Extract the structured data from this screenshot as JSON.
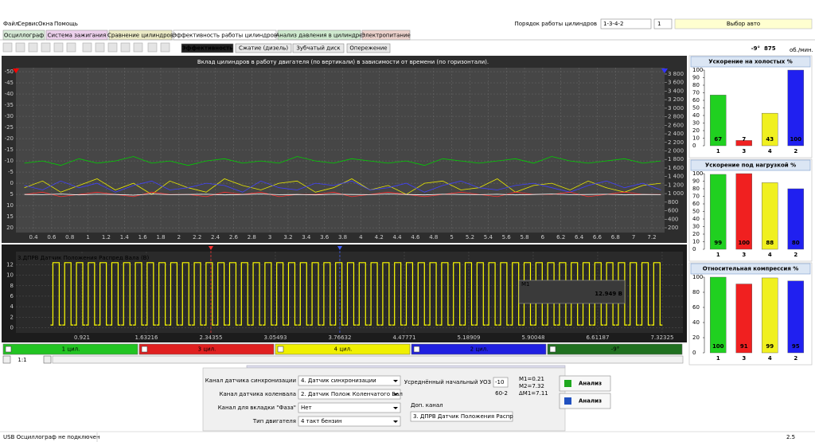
{
  "menu": [
    "Файл",
    "Сервис",
    "Окна",
    "Помощь"
  ],
  "tabs": [
    "Осциллограф",
    "Система зажигания",
    "Сравнение цилиндров",
    "Эффективность работы цилиндров",
    "Анализ давления в цилиндре",
    "Электропитание"
  ],
  "toolbar": {
    "firing_order_label": "Порядок работы цилиндров",
    "firing_order": "1-3-4-2",
    "cylinder": "1",
    "car_select": "Выбор авто"
  },
  "subtabs": [
    "Эффективность",
    "Сжатие (дизель)",
    "Зубчатый диск",
    "Опережение"
  ],
  "readout": {
    "advance": "-9°",
    "rpm": "875",
    "rpm_unit": "об./мин."
  },
  "chart_data": [
    {
      "type": "line",
      "title": "Вклад цилиндров в работу двигателя (по вертикали) в зависимости от времени (по горизонтали).",
      "x": [
        0.3,
        0.5,
        0.7,
        0.9,
        1.1,
        1.3,
        1.5,
        1.7,
        1.9,
        2.1,
        2.3,
        2.5,
        2.7,
        2.9,
        3.1,
        3.3,
        3.5,
        3.7,
        3.9,
        4.1,
        4.3,
        4.5,
        4.7,
        4.9,
        5.1,
        5.3,
        5.5,
        5.7,
        5.9,
        6.1,
        6.3,
        6.5,
        6.7,
        6.9,
        7.1,
        7.3
      ],
      "xlim": [
        0.207,
        7.34
      ],
      "xticks": [
        0.4,
        0.6,
        0.8,
        1,
        1.2,
        1.4,
        1.6,
        1.8,
        2,
        2.2,
        2.4,
        2.6,
        2.8,
        3,
        3.2,
        3.4,
        3.6,
        3.8,
        4,
        4.2,
        4.4,
        4.6,
        4.8,
        5,
        5.2,
        5.4,
        5.6,
        5.8,
        6,
        6.2,
        6.4,
        6.6,
        6.8,
        7,
        7.2
      ],
      "ylim": [
        -51.8,
        22.1
      ],
      "y_inverted": true,
      "yticks": [
        -50,
        -45,
        -40,
        -35,
        -30,
        -25,
        -20,
        -15,
        -10,
        -5,
        0,
        5,
        10,
        15,
        20
      ],
      "y2lim": [
        88,
        3949
      ],
      "y2ticks": [
        {
          "value": 200,
          "label": "200"
        },
        {
          "value": 400,
          "label": "400"
        },
        {
          "value": 600,
          "label": "600"
        },
        {
          "value": 800,
          "label": "800"
        },
        {
          "value": 1000,
          "label": "1 000"
        },
        {
          "value": 1200,
          "label": "1 200"
        },
        {
          "value": 1400,
          "label": "1 400"
        },
        {
          "value": 1600,
          "label": "1 600"
        },
        {
          "value": 1800,
          "label": "1 800"
        },
        {
          "value": 2000,
          "label": "2 000"
        },
        {
          "value": 2200,
          "label": "2 200"
        },
        {
          "value": 2400,
          "label": "2 400"
        },
        {
          "value": 2600,
          "label": "2 600"
        },
        {
          "value": 2800,
          "label": "2 800"
        },
        {
          "value": 3000,
          "label": "3 000"
        },
        {
          "value": 3200,
          "label": "3 200"
        },
        {
          "value": 3400,
          "label": "3 400"
        },
        {
          "value": 3600,
          "label": "3 600"
        },
        {
          "value": 3800,
          "label": "3 800"
        }
      ],
      "grid": true,
      "series": [
        {
          "color": "#00d000",
          "values": [
            -9,
            -10,
            -8,
            -11,
            -9,
            -10,
            -12,
            -9,
            -10,
            -8,
            -10,
            -11,
            -9,
            -10,
            -9,
            -12,
            -10,
            -9,
            -11,
            -10,
            -9,
            -10,
            -8,
            -11,
            -10,
            -9,
            -10,
            -11,
            -9,
            -12,
            -10,
            -9,
            -10,
            -11,
            -9,
            -10
          ]
        },
        {
          "color": "#e8e800",
          "values": [
            2,
            -1,
            4,
            1,
            -2,
            3,
            0,
            5,
            -1,
            2,
            4,
            -2,
            1,
            3,
            0,
            -1,
            4,
            2,
            -2,
            3,
            1,
            5,
            0,
            -1,
            3,
            2,
            -2,
            4,
            1,
            0,
            3,
            -1,
            2,
            4,
            1,
            0
          ]
        },
        {
          "color": "#4040ff",
          "values": [
            1,
            3,
            -1,
            2,
            0,
            4,
            1,
            -1,
            3,
            2,
            0,
            1,
            4,
            -1,
            2,
            3,
            0,
            1,
            -1,
            3,
            2,
            0,
            4,
            1,
            -1,
            2,
            3,
            1,
            0,
            2,
            4,
            1,
            -1,
            2,
            0,
            3
          ]
        },
        {
          "color": "#ff3030",
          "values": [
            5,
            4,
            6,
            5,
            4,
            5,
            6,
            4,
            5,
            5,
            6,
            4,
            5,
            4,
            6,
            5,
            5,
            4,
            6,
            5,
            4,
            5,
            6,
            5,
            4,
            5,
            6,
            4,
            5,
            5,
            4,
            6,
            5,
            4,
            5,
            5
          ]
        },
        {
          "color": "#ffffff",
          "axis": "y2",
          "values": [
            980,
            975,
            990,
            970,
            985,
            980,
            965,
            990,
            975,
            980,
            985,
            970,
            980,
            990,
            975,
            980,
            970,
            985,
            980,
            975,
            990,
            980,
            970,
            985,
            980,
            975,
            985,
            970,
            980,
            990,
            975,
            980,
            985,
            970,
            980,
            975
          ]
        }
      ]
    },
    {
      "type": "pulse",
      "title": "3.ДПРВ Датчик Положения Распред Вала (В)",
      "color": "#ffff00",
      "xlim": [
        0.192,
        7.552
      ],
      "xticks": [
        0.921,
        1.63216,
        2.34355,
        3.05493,
        3.76632,
        4.47771,
        5.18909,
        5.90048,
        6.61187,
        7.32325
      ],
      "ylim": [
        -1,
        14.5
      ],
      "yticks": [
        0,
        2,
        4,
        6,
        8,
        10,
        12
      ],
      "grid": true,
      "signal_low": 0.5,
      "signal_high": 12.4,
      "pulse_width": 0.07,
      "pulse_starts": [
        0.6,
        0.73,
        0.86,
        0.99,
        1.12,
        1.25,
        1.38,
        1.51,
        1.64,
        1.77,
        1.9,
        2.03,
        2.16,
        2.29,
        2.42,
        2.55,
        2.68,
        2.81,
        2.94,
        3.07,
        3.2,
        3.33,
        3.46,
        3.59,
        3.72,
        3.85,
        3.98,
        4.11,
        4.24,
        4.37,
        4.5,
        4.63,
        4.76,
        4.89,
        5.02,
        5.15,
        5.28,
        5.41,
        5.54,
        5.67,
        5.8,
        5.93,
        6.06,
        6.19,
        6.32,
        6.45,
        6.58,
        6.71,
        6.84,
        6.97,
        7.1,
        7.23
      ],
      "cursors": [
        2.34355,
        3.76632
      ],
      "marker_name": "M1",
      "marker_value": "12.949 В"
    },
    {
      "type": "bar",
      "title": "Ускорение на холостых %",
      "categories": [
        "1",
        "3",
        "4",
        "2"
      ],
      "values": [
        67,
        7,
        43,
        100
      ],
      "colors": [
        "#20d020",
        "#f02020",
        "#f0f020",
        "#2020f0"
      ],
      "ylim": [
        0,
        100
      ],
      "yticks": [
        0,
        10,
        20,
        30,
        40,
        50,
        60,
        70,
        80,
        90,
        100
      ]
    },
    {
      "type": "bar",
      "title": "Ускорение под нагрузкой %",
      "categories": [
        "1",
        "3",
        "4",
        "2"
      ],
      "values": [
        99,
        100,
        88,
        80
      ],
      "colors": [
        "#20d020",
        "#f02020",
        "#f0f020",
        "#2020f0"
      ],
      "ylim": [
        0,
        100
      ],
      "yticks": [
        0,
        10,
        20,
        30,
        40,
        50,
        60,
        70,
        80,
        90,
        100
      ]
    },
    {
      "type": "bar",
      "title": "Относительная компрессия %",
      "categories": [
        "1",
        "3",
        "4",
        "2"
      ],
      "values": [
        100,
        91,
        99,
        95
      ],
      "colors": [
        "#20d020",
        "#f02020",
        "#f0f020",
        "#2020f0"
      ],
      "ylim": [
        0,
        100
      ],
      "yticks": [
        0,
        20,
        40,
        60,
        80,
        100
      ]
    }
  ],
  "channels": [
    "1 цил.",
    "3 цил.",
    "4 цил.",
    "2 цил.",
    "-9°"
  ],
  "zoom": "1:1",
  "settings": {
    "sync_channel": {
      "label": "Канал датчика синхронизации",
      "value": "4. Датчик синхронизации"
    },
    "crank_channel": {
      "label": "Канал датчика коленвала",
      "value": "2. Датчик Полож Коленчатого Вал"
    },
    "phase_channel": {
      "label": "Канал для вкладки \"Фаза\"",
      "value": "Нет"
    },
    "engine_type": {
      "label": "Тип двигателя",
      "value": "4 такт бензин"
    },
    "advance": {
      "label": "Усреднённый начальный УОЗ",
      "value": "-10"
    },
    "wheel": "60-2",
    "measurements": [
      "M1=0.21",
      "M2=7.32",
      "ΔM1=7.11"
    ],
    "extra_channel": {
      "label": "Доп. канал",
      "value": "3. ДПРВ Датчик Положения Распр"
    },
    "buttons": [
      "Анализ",
      "Анализ"
    ]
  },
  "status": {
    "message": "USB Осциллограф не подключен",
    "version": "2.5"
  }
}
